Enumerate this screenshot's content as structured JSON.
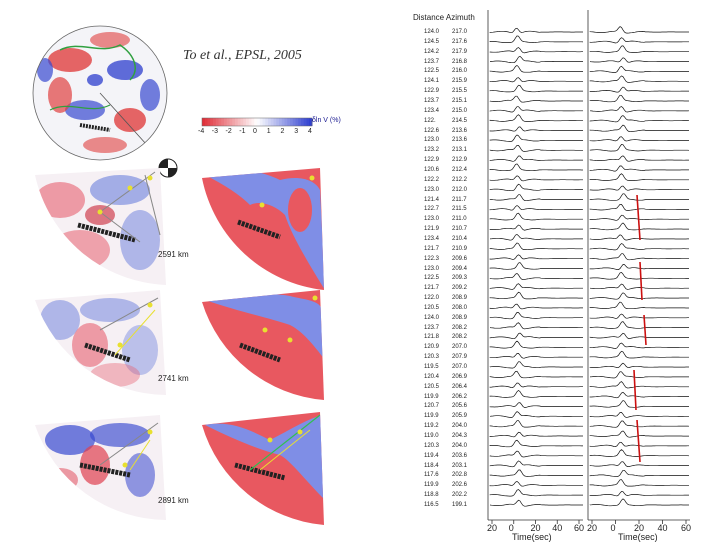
{
  "citation": "To et al., EPSL, 2005",
  "colorbar": {
    "label": "δln V (%)",
    "ticks": [
      "-4",
      "-3",
      "-2",
      "-1",
      "0",
      "1",
      "2",
      "3",
      "4"
    ],
    "negative_color": "#e0303a",
    "positive_color": "#3040d0"
  },
  "depth_labels": [
    "2591 km",
    "2741 km",
    "2891 km"
  ],
  "traces_panel": {
    "header": "Distance Azimuth",
    "rows": [
      {
        "distance": "124.0",
        "azimuth": "217.0"
      },
      {
        "distance": "124.5",
        "azimuth": "217.6"
      },
      {
        "distance": "124.2",
        "azimuth": "217.9"
      },
      {
        "distance": "123.7",
        "azimuth": "216.8"
      },
      {
        "distance": "122.5",
        "azimuth": "216.0"
      },
      {
        "distance": "124.1",
        "azimuth": "215.9"
      },
      {
        "distance": "122.9",
        "azimuth": "215.5"
      },
      {
        "distance": "123.7",
        "azimuth": "215.1"
      },
      {
        "distance": "123.4",
        "azimuth": "215.0"
      },
      {
        "distance": "122.",
        "azimuth": "214.5"
      },
      {
        "distance": "122.6",
        "azimuth": "213.6"
      },
      {
        "distance": "123.0",
        "azimuth": "213.6"
      },
      {
        "distance": "123.2",
        "azimuth": "213.1"
      },
      {
        "distance": "122.9",
        "azimuth": "212.9"
      },
      {
        "distance": "120.6",
        "azimuth": "212.4"
      },
      {
        "distance": "122.2",
        "azimuth": "212.2"
      },
      {
        "distance": "123.0",
        "azimuth": "212.0"
      },
      {
        "distance": "121.4",
        "azimuth": "211.7"
      },
      {
        "distance": "122.7",
        "azimuth": "211.5"
      },
      {
        "distance": "123.0",
        "azimuth": "211.0"
      },
      {
        "distance": "121.9",
        "azimuth": "210.7"
      },
      {
        "distance": "123.4",
        "azimuth": "210.4"
      },
      {
        "distance": "121.7",
        "azimuth": "210.9"
      },
      {
        "distance": "122.3",
        "azimuth": "209.6"
      },
      {
        "distance": "123.0",
        "azimuth": "209.4"
      },
      {
        "distance": "122.5",
        "azimuth": "209.3"
      },
      {
        "distance": "121.7",
        "azimuth": "209.2"
      },
      {
        "distance": "122.0",
        "azimuth": "208.9"
      },
      {
        "distance": "120.5",
        "azimuth": "208.0"
      },
      {
        "distance": "124.0",
        "azimuth": "208.9"
      },
      {
        "distance": "123.7",
        "azimuth": "208.2"
      },
      {
        "distance": "121.8",
        "azimuth": "208.2"
      },
      {
        "distance": "120.9",
        "azimuth": "207.0"
      },
      {
        "distance": "120.3",
        "azimuth": "207.9"
      },
      {
        "distance": "119.5",
        "azimuth": "207.0"
      },
      {
        "distance": "120.4",
        "azimuth": "206.9"
      },
      {
        "distance": "120.5",
        "azimuth": "206.4"
      },
      {
        "distance": "119.9",
        "azimuth": "206.2"
      },
      {
        "distance": "120.7",
        "azimuth": "205.6"
      },
      {
        "distance": "119.9",
        "azimuth": "205.9"
      },
      {
        "distance": "119.2",
        "azimuth": "204.0"
      },
      {
        "distance": "119.0",
        "azimuth": "204.3"
      },
      {
        "distance": "120.3",
        "azimuth": "204.0"
      },
      {
        "distance": "119.4",
        "azimuth": "203.6"
      },
      {
        "distance": "118.4",
        "azimuth": "203.1"
      },
      {
        "distance": "117.6",
        "azimuth": "202.8"
      },
      {
        "distance": "119.9",
        "azimuth": "202.6"
      },
      {
        "distance": "118.8",
        "azimuth": "202.2"
      },
      {
        "distance": "116.5",
        "azimuth": "199.1"
      }
    ],
    "x_ticks": [
      "20",
      "0",
      "20",
      "40",
      "60"
    ],
    "x_label": "Time(sec)"
  }
}
